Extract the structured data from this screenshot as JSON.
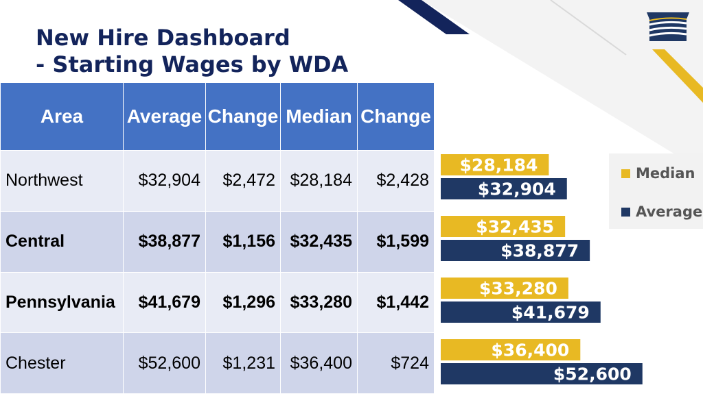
{
  "title": {
    "line1": "New Hire Dashboard",
    "line2": "- Starting Wages by WDA"
  },
  "colors": {
    "title": "#13245b",
    "header_bg": "#4472c4",
    "row_light": "#e8ebf5",
    "row_dark": "#cfd5ea",
    "median_bar": "#e8b923",
    "average_bar": "#1f3864",
    "logo": "#1f3864",
    "logo_accent": "#e8b923"
  },
  "table": {
    "headers": [
      "Area",
      "Average",
      "Change",
      "Median",
      "Change"
    ],
    "rows": [
      {
        "area": "Northwest",
        "average": "$32,904",
        "avg_change": "$2,472",
        "median": "$28,184",
        "med_change": "$2,428"
      },
      {
        "area": "Central",
        "average": "$38,877",
        "avg_change": "$1,156",
        "median": "$32,435",
        "med_change": "$1,599"
      },
      {
        "area": "Pennsylvania",
        "average": "$41,679",
        "avg_change": "$1,296",
        "median": "$33,280",
        "med_change": "$1,442"
      },
      {
        "area": "Chester",
        "average": "$52,600",
        "avg_change": "$1,231",
        "median": "$36,400",
        "med_change": "$724"
      }
    ]
  },
  "chart_data": {
    "type": "bar",
    "orientation": "horizontal",
    "categories": [
      "Northwest",
      "Central",
      "Pennsylvania",
      "Chester"
    ],
    "series": [
      {
        "name": "Median",
        "values": [
          28184,
          32435,
          33280,
          36400
        ],
        "labels": [
          "$28,184",
          "$32,435",
          "$33,280",
          "$36,400"
        ],
        "color": "#e8b923"
      },
      {
        "name": "Average",
        "values": [
          32904,
          38877,
          41679,
          52600
        ],
        "labels": [
          "$32,904",
          "$38,877",
          "$41,679",
          "$52,600"
        ],
        "color": "#1f3864"
      }
    ],
    "legend": "top-right",
    "grid": false
  }
}
